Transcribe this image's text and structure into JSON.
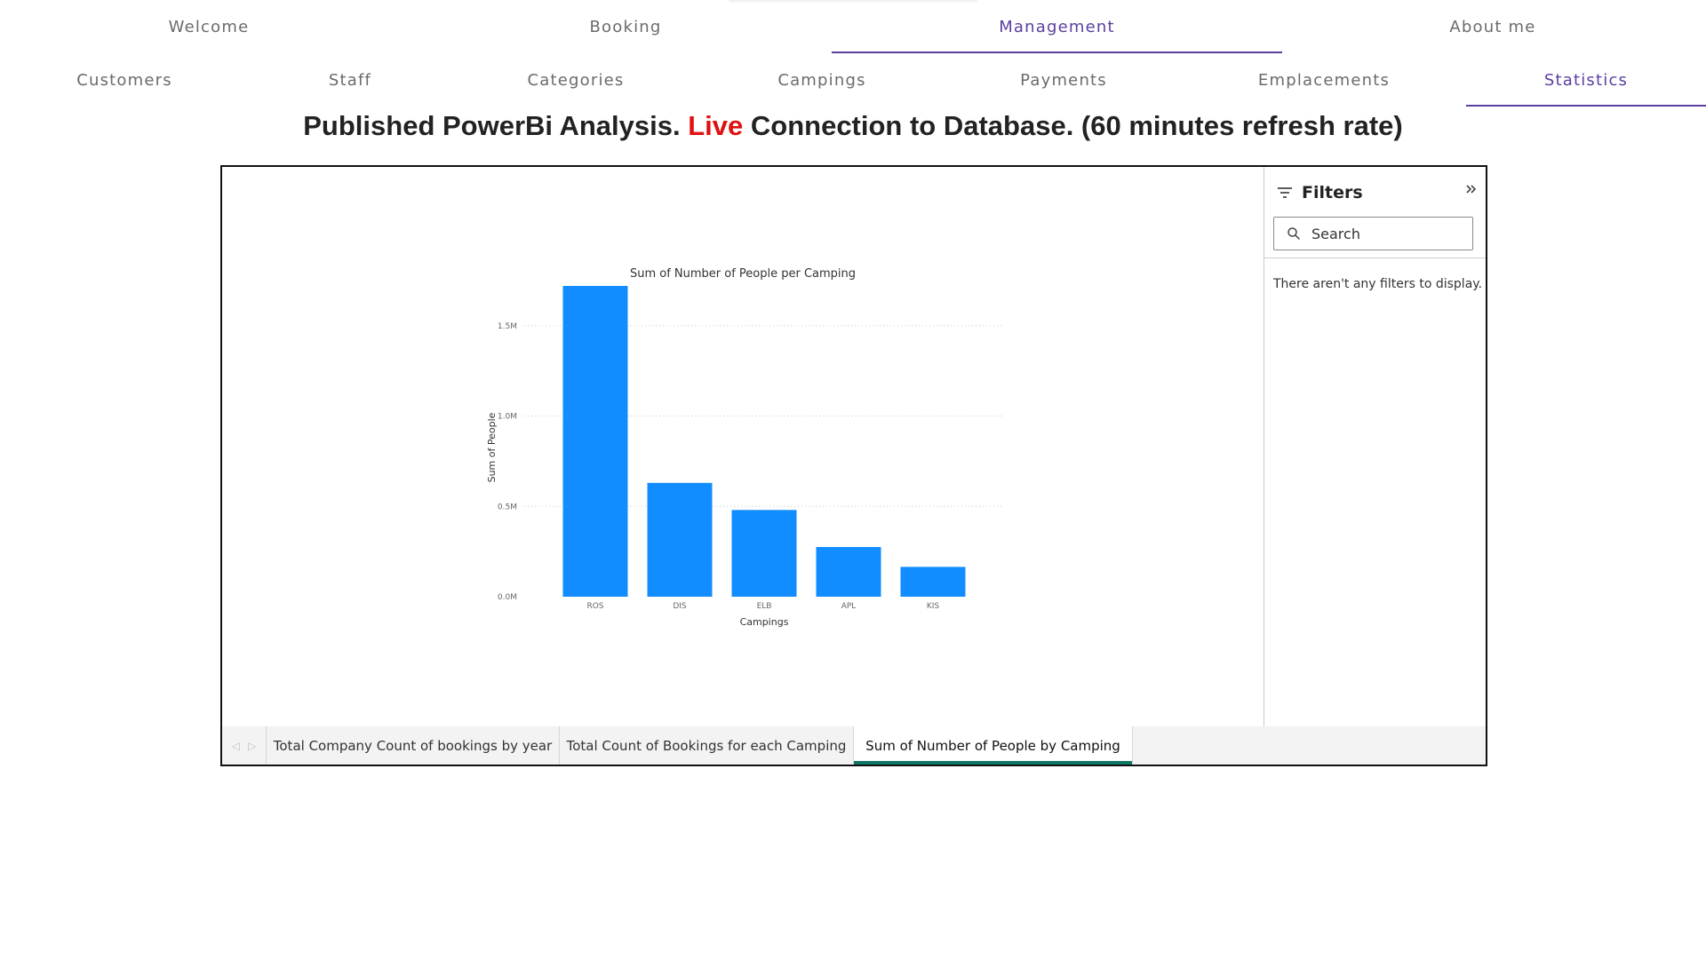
{
  "nav": {
    "top_tabs": [
      {
        "label": "Welcome"
      },
      {
        "label": "Booking"
      },
      {
        "label": "Management",
        "active": true
      },
      {
        "label": "About me"
      }
    ],
    "sub_tabs": [
      {
        "label": "Customers"
      },
      {
        "label": "Staff"
      },
      {
        "label": "Categories"
      },
      {
        "label": "Campings"
      },
      {
        "label": "Payments"
      },
      {
        "label": "Emplacements"
      },
      {
        "label": "Statistics",
        "active": true
      }
    ]
  },
  "headline": {
    "prefix": "Published PowerBi Analysis. ",
    "live": "Live",
    "suffix": " Connection to Database. (60 minutes refresh rate)"
  },
  "filters": {
    "title": "Filters",
    "collapse_icon": "double-chevron-right-icon",
    "search_placeholder": "Search",
    "empty_message": "There aren't any filters to display."
  },
  "page_tabs": [
    {
      "label": "Total Company Count of bookings by year"
    },
    {
      "label": "Total Count of Bookings for each Camping"
    },
    {
      "label": "Sum of Number of People by Camping",
      "active": true
    }
  ],
  "colors": {
    "accent": "#5b3ea0",
    "live": "#e01010",
    "bar": "#118dff",
    "active_page_indicator": "#117865"
  },
  "chart_data": {
    "type": "bar",
    "title": "Sum of Number of People per Camping",
    "xlabel": "Campings",
    "ylabel": "Sum of People",
    "categories": [
      "ROS",
      "DIS",
      "ELB",
      "APL",
      "KIS"
    ],
    "values": [
      1720000,
      630000,
      480000,
      275000,
      165000
    ],
    "yticks": [
      0,
      500000,
      1000000,
      1500000
    ],
    "ytick_labels": [
      "0.0M",
      "0.5M",
      "1.0M",
      "1.5M"
    ],
    "ylim": [
      0,
      1720000
    ],
    "grid": true,
    "legend": "none"
  }
}
